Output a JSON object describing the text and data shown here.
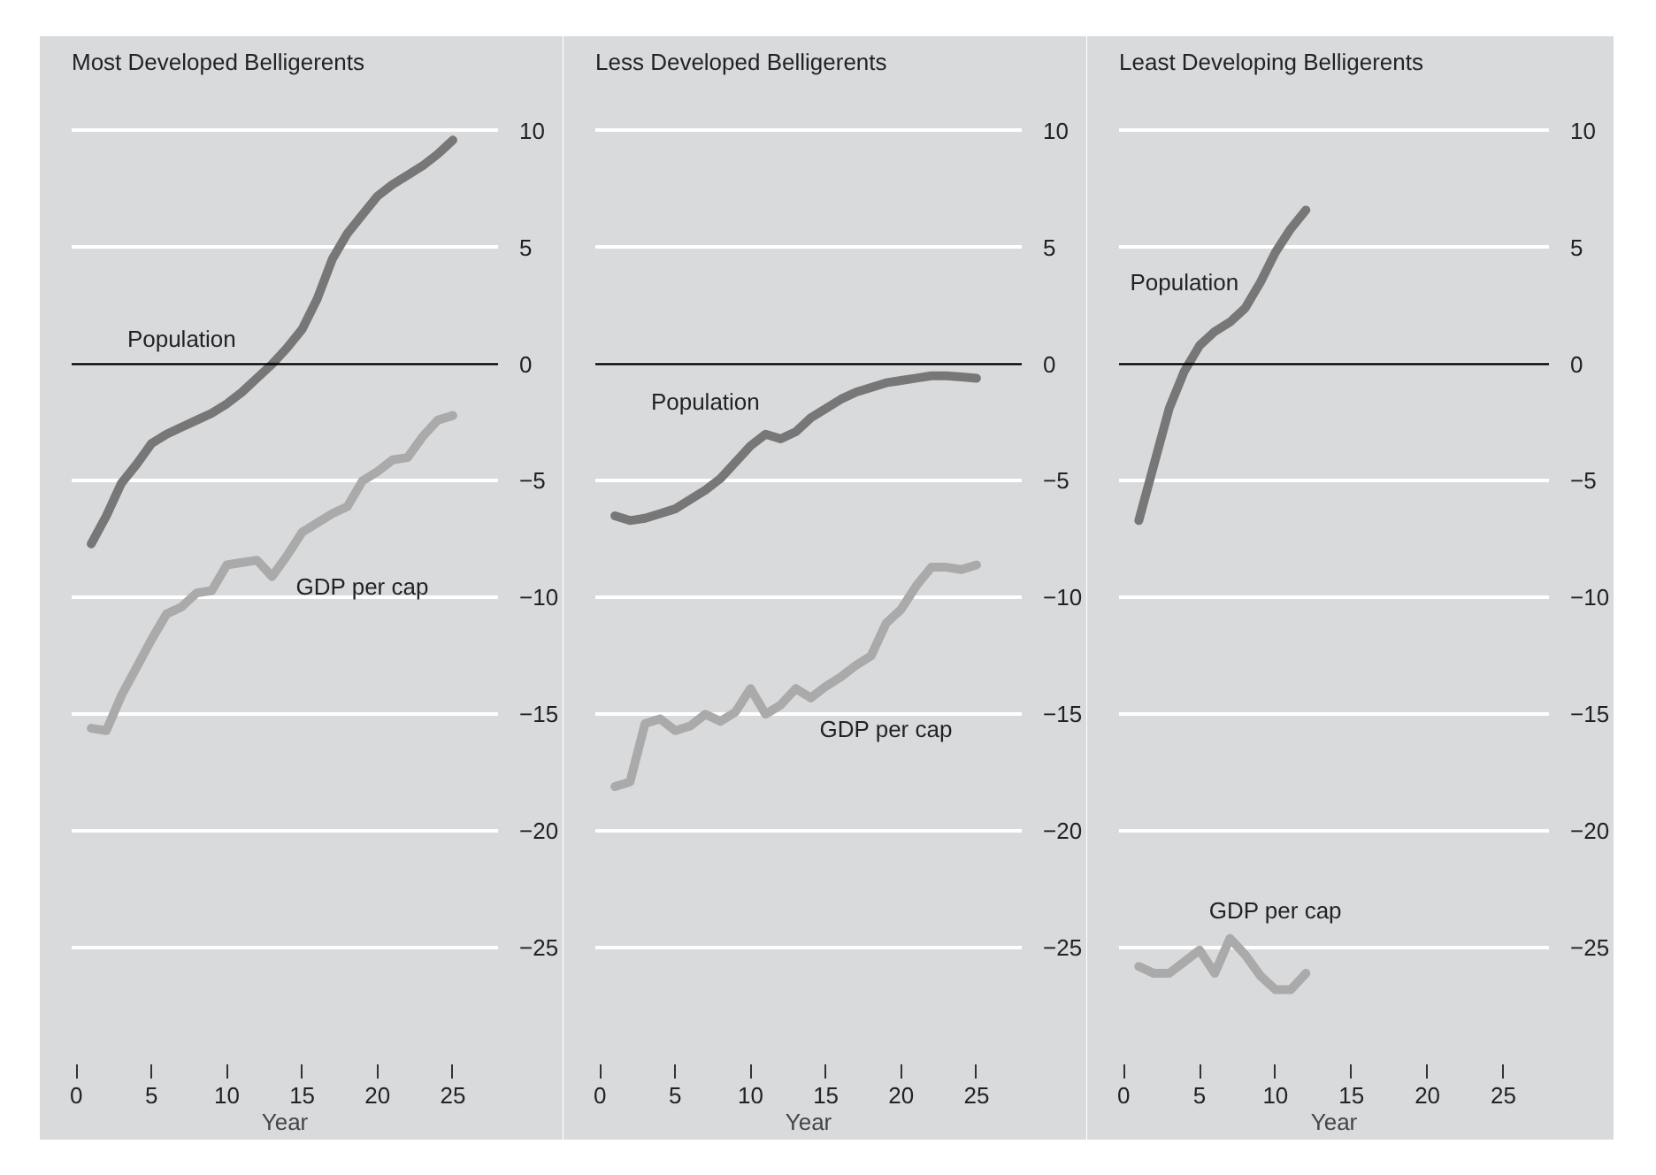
{
  "chart_data": [
    {
      "type": "line",
      "title": "Most Developed Belligerents",
      "xlabel": "Year",
      "x": [
        1,
        2,
        3,
        4,
        5,
        6,
        7,
        8,
        9,
        10,
        11,
        12,
        13,
        14,
        15,
        16,
        17,
        18,
        19,
        20,
        21,
        22,
        23,
        24,
        25
      ],
      "series": [
        {
          "name": "Population",
          "color": "#777777",
          "values": [
            -7.7,
            -6.5,
            -5.1,
            -4.3,
            -3.4,
            -3.0,
            -2.7,
            -2.4,
            -2.1,
            -1.7,
            -1.2,
            -0.6,
            0,
            0.7,
            1.5,
            2.8,
            4.5,
            5.6,
            6.4,
            7.2,
            7.7,
            8.1,
            8.5,
            9.0,
            9.6
          ]
        },
        {
          "name": "GDP per cap",
          "color": "#aaaaaa",
          "values": [
            -15.6,
            -15.7,
            -14.2,
            -13.0,
            -11.8,
            -10.7,
            -10.4,
            -9.8,
            -9.7,
            -8.6,
            -8.5,
            -8.4,
            -9.1,
            -8.2,
            -7.2,
            -6.8,
            -6.4,
            -6.1,
            -5.0,
            -4.6,
            -4.1,
            -4.0,
            -3.1,
            -2.4,
            -2.2
          ]
        }
      ],
      "ref_lines": [
        {
          "axis": "y",
          "value": 0,
          "color": "#000000"
        }
      ],
      "xlim": [
        -0.3,
        28
      ],
      "xticks": [
        0,
        5,
        10,
        15,
        20,
        25
      ],
      "ylim": [
        -30,
        12
      ],
      "yticks": [
        -25,
        -20,
        -15,
        -10,
        -5,
        0,
        5,
        10
      ],
      "grid": "y",
      "legend": false
    },
    {
      "type": "line",
      "title": "Less Developed Belligerents",
      "xlabel": "Year",
      "x": [
        1,
        2,
        3,
        4,
        5,
        6,
        7,
        8,
        9,
        10,
        11,
        12,
        13,
        14,
        15,
        16,
        17,
        18,
        19,
        20,
        21,
        22,
        23,
        24,
        25
      ],
      "series": [
        {
          "name": "Population",
          "color": "#777777",
          "values": [
            -6.5,
            -6.7,
            -6.6,
            -6.4,
            -6.2,
            -5.8,
            -5.4,
            -4.9,
            -4.2,
            -3.5,
            -3.0,
            -3.2,
            -2.9,
            -2.3,
            -1.9,
            -1.5,
            -1.2,
            -1.0,
            -0.8,
            -0.7,
            -0.6,
            -0.5,
            -0.5,
            -0.55,
            -0.6
          ]
        },
        {
          "name": "GDP per cap",
          "color": "#aaaaaa",
          "values": [
            -18.1,
            -17.9,
            -15.4,
            -15.2,
            -15.7,
            -15.5,
            -15.0,
            -15.3,
            -14.9,
            -13.9,
            -15.0,
            -14.6,
            -13.9,
            -14.3,
            -13.8,
            -13.4,
            -12.9,
            -12.5,
            -11.1,
            -10.5,
            -9.5,
            -8.7,
            -8.7,
            -8.8,
            -8.6
          ]
        }
      ],
      "ref_lines": [
        {
          "axis": "y",
          "value": 0,
          "color": "#000000"
        }
      ],
      "xlim": [
        -0.3,
        28
      ],
      "xticks": [
        0,
        5,
        10,
        15,
        20,
        25
      ],
      "ylim": [
        -30,
        12
      ],
      "yticks": [
        -25,
        -20,
        -15,
        -10,
        -5,
        0,
        5,
        10
      ],
      "grid": "y",
      "legend": false
    },
    {
      "type": "line",
      "title": "Least Developing Belligerents",
      "xlabel": "Year",
      "x": [
        1,
        2,
        3,
        4,
        5,
        6,
        7,
        8,
        9,
        10,
        11,
        12
      ],
      "series": [
        {
          "name": "Population",
          "color": "#777777",
          "values": [
            -6.7,
            -4.3,
            -1.9,
            -0.3,
            0.8,
            1.4,
            1.8,
            2.4,
            3.5,
            4.8,
            5.8,
            6.6
          ]
        },
        {
          "name": "GDP per cap",
          "color": "#aaaaaa",
          "values": [
            -25.8,
            -26.1,
            -26.1,
            -25.6,
            -25.1,
            -26.1,
            -24.6,
            -25.3,
            -26.2,
            -26.8,
            -26.8,
            -26.1
          ]
        }
      ],
      "ref_lines": [
        {
          "axis": "y",
          "value": 0,
          "color": "#000000"
        }
      ],
      "xlim": [
        -0.3,
        28
      ],
      "xticks": [
        0,
        5,
        10,
        15,
        20,
        25
      ],
      "ylim": [
        -30,
        12
      ],
      "yticks": [
        -25,
        -20,
        -15,
        -10,
        -5,
        0,
        5,
        10
      ],
      "grid": "y",
      "legend": false
    }
  ]
}
